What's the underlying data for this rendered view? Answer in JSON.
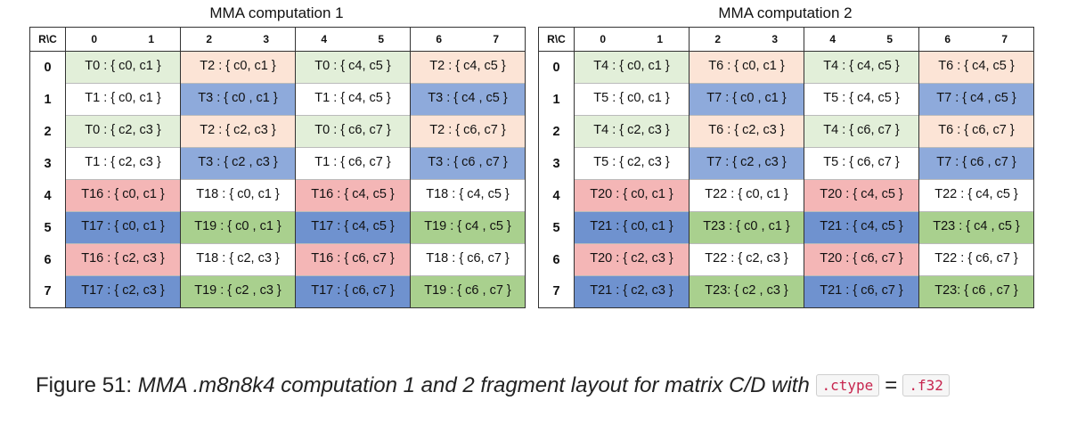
{
  "caption": {
    "prefix": "Figure 51: ",
    "italic_text": "MMA .m8n8k4 computation 1 and 2 fragment layout for matrix C/D with ",
    "code1": ".ctype",
    "equals": "=",
    "code2": ".f32"
  },
  "colors": {
    "green": "#e2efd9",
    "peach": "#fce4d6",
    "white": "#ffffff",
    "blue": "#8eaadb",
    "pink": "#f4b6b6",
    "dblue": "#6f92cf",
    "mgreen": "#a9d08e"
  },
  "tables": [
    {
      "title": "MMA computation 1",
      "corner": "R\\C",
      "cols": [
        "0",
        "1",
        "2",
        "3",
        "4",
        "5",
        "6",
        "7"
      ],
      "rows": [
        {
          "label": "0",
          "cells": [
            {
              "text": "T0 : { c0, c1 }",
              "color": "green"
            },
            {
              "text": "T2 : { c0, c1 }",
              "color": "peach"
            },
            {
              "text": "T0 : { c4, c5 }",
              "color": "green"
            },
            {
              "text": "T2 : { c4, c5 }",
              "color": "peach"
            }
          ]
        },
        {
          "label": "1",
          "cells": [
            {
              "text": "T1 : { c0, c1 }",
              "color": "white"
            },
            {
              "text": "T3 : { c0 , c1 }",
              "color": "blue"
            },
            {
              "text": "T1 : { c4, c5 }",
              "color": "white"
            },
            {
              "text": "T3 : { c4 , c5 }",
              "color": "blue"
            }
          ]
        },
        {
          "label": "2",
          "cells": [
            {
              "text": "T0 : { c2, c3 }",
              "color": "green"
            },
            {
              "text": "T2 : { c2, c3 }",
              "color": "peach"
            },
            {
              "text": "T0 : { c6, c7 }",
              "color": "green"
            },
            {
              "text": "T2 : { c6, c7 }",
              "color": "peach"
            }
          ]
        },
        {
          "label": "3",
          "cells": [
            {
              "text": "T1 : { c2, c3 }",
              "color": "white"
            },
            {
              "text": "T3 : { c2 , c3 }",
              "color": "blue"
            },
            {
              "text": "T1 : { c6, c7 }",
              "color": "white"
            },
            {
              "text": "T3 : { c6 , c7 }",
              "color": "blue"
            }
          ]
        },
        {
          "label": "4",
          "cells": [
            {
              "text": "T16 : { c0, c1 }",
              "color": "pink"
            },
            {
              "text": "T18 : { c0, c1 }",
              "color": "white"
            },
            {
              "text": "T16 : { c4, c5 }",
              "color": "pink"
            },
            {
              "text": "T18 : { c4, c5 }",
              "color": "white"
            }
          ]
        },
        {
          "label": "5",
          "cells": [
            {
              "text": "T17 : { c0, c1 }",
              "color": "dblue"
            },
            {
              "text": "T19 : { c0 , c1 }",
              "color": "mgreen"
            },
            {
              "text": "T17 : { c4, c5 }",
              "color": "dblue"
            },
            {
              "text": "T19 : { c4 , c5 }",
              "color": "mgreen"
            }
          ]
        },
        {
          "label": "6",
          "cells": [
            {
              "text": "T16 : { c2, c3 }",
              "color": "pink"
            },
            {
              "text": "T18 : { c2, c3 }",
              "color": "white"
            },
            {
              "text": "T16 : { c6, c7 }",
              "color": "pink"
            },
            {
              "text": "T18 : { c6, c7 }",
              "color": "white"
            }
          ]
        },
        {
          "label": "7",
          "cells": [
            {
              "text": "T17 : { c2, c3 }",
              "color": "dblue"
            },
            {
              "text": "T19 : { c2 , c3 }",
              "color": "mgreen"
            },
            {
              "text": "T17 : { c6, c7 }",
              "color": "dblue"
            },
            {
              "text": "T19 : { c6 , c7 }",
              "color": "mgreen"
            }
          ]
        }
      ]
    },
    {
      "title": "MMA computation 2",
      "corner": "R\\C",
      "cols": [
        "0",
        "1",
        "2",
        "3",
        "4",
        "5",
        "6",
        "7"
      ],
      "rows": [
        {
          "label": "0",
          "cells": [
            {
              "text": "T4 : { c0, c1 }",
              "color": "green"
            },
            {
              "text": "T6 : { c0, c1 }",
              "color": "peach"
            },
            {
              "text": "T4 : { c4, c5 }",
              "color": "green"
            },
            {
              "text": "T6 : { c4, c5 }",
              "color": "peach"
            }
          ]
        },
        {
          "label": "1",
          "cells": [
            {
              "text": "T5 : { c0, c1 }",
              "color": "white"
            },
            {
              "text": "T7 : { c0 , c1 }",
              "color": "blue"
            },
            {
              "text": "T5 : { c4, c5 }",
              "color": "white"
            },
            {
              "text": "T7 : { c4 , c5 }",
              "color": "blue"
            }
          ]
        },
        {
          "label": "2",
          "cells": [
            {
              "text": "T4 : { c2, c3 }",
              "color": "green"
            },
            {
              "text": "T6 : { c2, c3 }",
              "color": "peach"
            },
            {
              "text": "T4 : { c6, c7 }",
              "color": "green"
            },
            {
              "text": "T6 : { c6, c7 }",
              "color": "peach"
            }
          ]
        },
        {
          "label": "3",
          "cells": [
            {
              "text": "T5 : { c2, c3 }",
              "color": "white"
            },
            {
              "text": "T7 : { c2 , c3 }",
              "color": "blue"
            },
            {
              "text": "T5 : { c6, c7 }",
              "color": "white"
            },
            {
              "text": "T7 : { c6 , c7 }",
              "color": "blue"
            }
          ]
        },
        {
          "label": "4",
          "cells": [
            {
              "text": "T20 : { c0, c1 }",
              "color": "pink"
            },
            {
              "text": "T22 : { c0, c1 }",
              "color": "white"
            },
            {
              "text": "T20 : { c4, c5 }",
              "color": "pink"
            },
            {
              "text": "T22 : { c4, c5 }",
              "color": "white"
            }
          ]
        },
        {
          "label": "5",
          "cells": [
            {
              "text": "T21 : { c0, c1 }",
              "color": "dblue"
            },
            {
              "text": "T23 : { c0 , c1 }",
              "color": "mgreen"
            },
            {
              "text": "T21 : { c4, c5 }",
              "color": "dblue"
            },
            {
              "text": "T23 : { c4 , c5 }",
              "color": "mgreen"
            }
          ]
        },
        {
          "label": "6",
          "cells": [
            {
              "text": "T20 : { c2, c3 }",
              "color": "pink"
            },
            {
              "text": "T22 : { c2, c3 }",
              "color": "white"
            },
            {
              "text": "T20 : { c6, c7 }",
              "color": "pink"
            },
            {
              "text": "T22 : { c6, c7 }",
              "color": "white"
            }
          ]
        },
        {
          "label": "7",
          "cells": [
            {
              "text": "T21 : { c2, c3 }",
              "color": "dblue"
            },
            {
              "text": "T23: { c2 , c3 }",
              "color": "mgreen"
            },
            {
              "text": "T21 : { c6, c7 }",
              "color": "dblue"
            },
            {
              "text": "T23: { c6 , c7 }",
              "color": "mgreen"
            }
          ]
        }
      ]
    }
  ]
}
